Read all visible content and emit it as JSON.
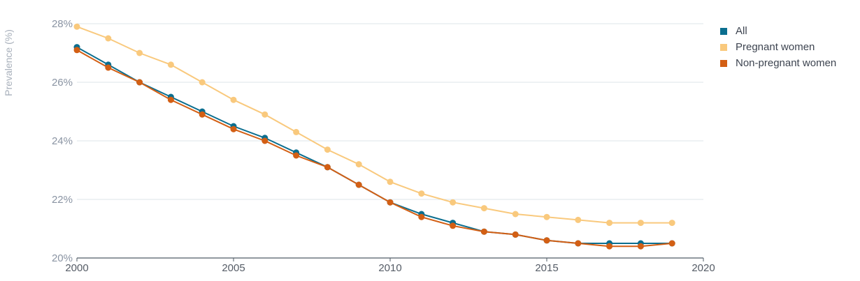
{
  "chart_data": {
    "type": "line",
    "title": "",
    "xlabel": "",
    "ylabel": "Prevalence (%)",
    "x": [
      2000,
      2001,
      2002,
      2003,
      2004,
      2005,
      2006,
      2007,
      2008,
      2009,
      2010,
      2011,
      2012,
      2013,
      2014,
      2015,
      2016,
      2017,
      2018,
      2019
    ],
    "xlim": [
      2000,
      2020
    ],
    "ylim": [
      20,
      28
    ],
    "x_ticks": [
      "2000",
      "2005",
      "2010",
      "2015",
      "2020"
    ],
    "y_ticks": [
      "20%",
      "22%",
      "24%",
      "26%",
      "28%"
    ],
    "grid": "horizontal",
    "legend_position": "top-right",
    "series": [
      {
        "name": "All",
        "color": "#0b6e8f",
        "values": [
          27.2,
          26.6,
          26.0,
          25.5,
          25.0,
          24.5,
          24.1,
          23.6,
          23.1,
          22.5,
          21.9,
          21.5,
          21.2,
          20.9,
          20.8,
          20.6,
          20.5,
          20.5,
          20.5,
          20.5
        ]
      },
      {
        "name": "Pregnant women",
        "color": "#f9c97d",
        "values": [
          27.9,
          27.5,
          27.0,
          26.6,
          26.0,
          25.4,
          24.9,
          24.3,
          23.7,
          23.2,
          22.6,
          22.2,
          21.9,
          21.7,
          21.5,
          21.4,
          21.3,
          21.2,
          21.2,
          21.2
        ]
      },
      {
        "name": "Non-pregnant women",
        "color": "#d35f14",
        "values": [
          27.1,
          26.5,
          26.0,
          25.4,
          24.9,
          24.4,
          24.0,
          23.5,
          23.1,
          22.5,
          21.9,
          21.4,
          21.1,
          20.9,
          20.8,
          20.6,
          20.5,
          20.4,
          20.4,
          20.5
        ]
      }
    ]
  }
}
